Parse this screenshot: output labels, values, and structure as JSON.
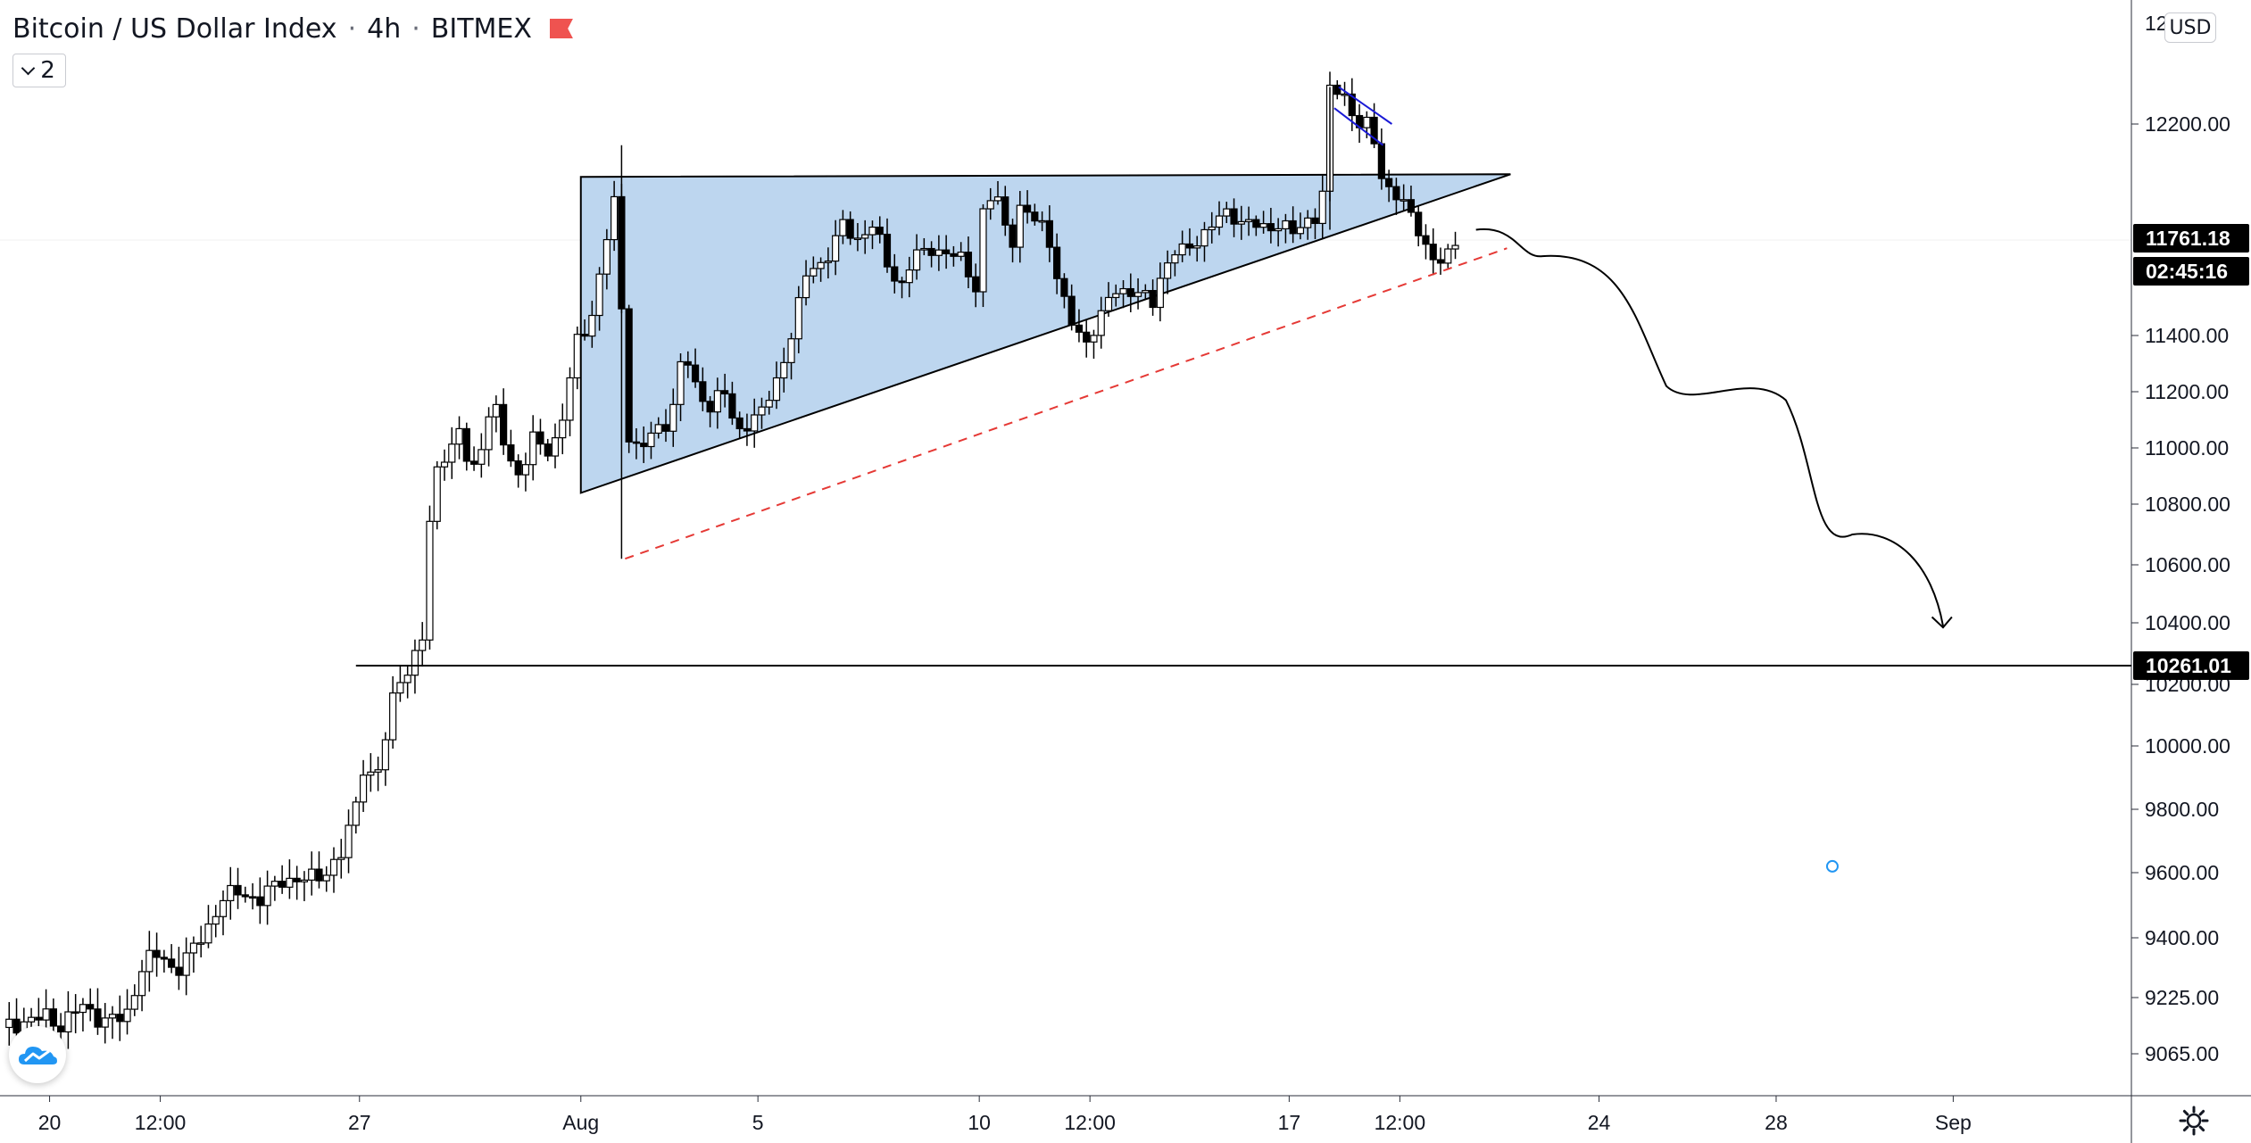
{
  "legend": {
    "symbol": "Bitcoin / US Dollar Index",
    "interval": "4h",
    "exchange": "BITMEX",
    "separator": "·",
    "flag_color": "#ef5350"
  },
  "indicator_toggle": {
    "count": "2"
  },
  "currency": "USD",
  "colors": {
    "pattern_fill": "#bdd6ef",
    "support_dashed": "#e53935",
    "flag_lines": "#1a1ad6",
    "candle_up": "#ffffff",
    "candle_down": "#000000",
    "price_label_bg": "#000000",
    "marker": "#2196f3"
  },
  "chart_data": {
    "type": "candlestick",
    "title": "Bitcoin / US Dollar Index · 4h · BITMEX",
    "ylim": [
      8970,
      12340
    ],
    "xlim_days": [
      "Jul 18 22:00",
      "Sep 3 12:00"
    ],
    "y_ticks": [
      {
        "label": "12200.00",
        "value": 12200
      },
      {
        "label": "11400.00",
        "value": 11400
      },
      {
        "label": "11200.00",
        "value": 11200
      },
      {
        "label": "11000.00",
        "value": 11000
      },
      {
        "label": "10800.00",
        "value": 10800
      },
      {
        "label": "10600.00",
        "value": 10600
      },
      {
        "label": "10400.00",
        "value": 10400
      },
      {
        "label": "10200.00",
        "value": 10200
      },
      {
        "label": "10000.00",
        "value": 10000
      },
      {
        "label": "9800.00",
        "value": 9800
      },
      {
        "label": "9600.00",
        "value": 9600
      },
      {
        "label": "9400.00",
        "value": 9400
      },
      {
        "label": "9225.00",
        "value": 9225
      },
      {
        "label": "9065.00",
        "value": 9065
      }
    ],
    "top_tick_partial": "12",
    "x_ticks": [
      {
        "label": "20",
        "day": 1.08
      },
      {
        "label": "12:00",
        "day": 3.58
      },
      {
        "label": "27",
        "day": 8.08
      },
      {
        "label": "Aug",
        "day": 13.08
      },
      {
        "label": "5",
        "day": 17.08
      },
      {
        "label": "10",
        "day": 22.08
      },
      {
        "label": "12:00",
        "day": 24.58
      },
      {
        "label": "17",
        "day": 29.08
      },
      {
        "label": "12:00",
        "day": 31.58
      },
      {
        "label": "24",
        "day": 36.08
      },
      {
        "label": "28",
        "day": 40.08
      },
      {
        "label": "Sep",
        "day": 44.08
      }
    ],
    "price_labels": {
      "last_price": "11761.18",
      "countdown": "02:45:16",
      "horizontal_level": "10261.01"
    },
    "close_path": [
      [
        0.0,
        9140
      ],
      [
        0.6,
        9160
      ],
      [
        1.0,
        9170
      ],
      [
        1.3,
        9145
      ],
      [
        1.8,
        9200
      ],
      [
        2.3,
        9160
      ],
      [
        2.8,
        9165
      ],
      [
        3.2,
        9330
      ],
      [
        3.6,
        9350
      ],
      [
        3.9,
        9300
      ],
      [
        4.3,
        9360
      ],
      [
        4.6,
        9420
      ],
      [
        5.0,
        9520
      ],
      [
        5.4,
        9545
      ],
      [
        5.8,
        9510
      ],
      [
        6.3,
        9580
      ],
      [
        6.8,
        9575
      ],
      [
        7.3,
        9600
      ],
      [
        7.7,
        9660
      ],
      [
        8.0,
        9820
      ],
      [
        8.2,
        9960
      ],
      [
        8.4,
        9880
      ],
      [
        8.6,
        9960
      ],
      [
        8.8,
        10140
      ],
      [
        9.0,
        10230
      ],
      [
        9.2,
        10240
      ],
      [
        9.5,
        10350
      ],
      [
        9.7,
        10810
      ],
      [
        9.9,
        11000
      ],
      [
        10.1,
        10950
      ],
      [
        10.3,
        11080
      ],
      [
        10.6,
        10900
      ],
      [
        10.9,
        11050
      ],
      [
        11.1,
        11170
      ],
      [
        11.4,
        10980
      ],
      [
        11.7,
        10900
      ],
      [
        12.0,
        11030
      ],
      [
        12.4,
        10980
      ],
      [
        12.7,
        11130
      ],
      [
        13.0,
        11380
      ],
      [
        13.3,
        11450
      ],
      [
        13.6,
        11720
      ],
      [
        13.9,
        11950
      ],
      [
        14.1,
        11060
      ],
      [
        14.4,
        10990
      ],
      [
        14.7,
        11050
      ],
      [
        15.1,
        11100
      ],
      [
        15.4,
        11350
      ],
      [
        15.7,
        11200
      ],
      [
        16.0,
        11150
      ],
      [
        16.3,
        11210
      ],
      [
        16.6,
        11050
      ],
      [
        16.9,
        11100
      ],
      [
        17.2,
        11130
      ],
      [
        17.5,
        11240
      ],
      [
        17.8,
        11380
      ],
      [
        18.2,
        11650
      ],
      [
        18.6,
        11680
      ],
      [
        19.0,
        11820
      ],
      [
        19.3,
        11760
      ],
      [
        19.7,
        11820
      ],
      [
        20.0,
        11670
      ],
      [
        20.3,
        11580
      ],
      [
        20.6,
        11700
      ],
      [
        21.0,
        11730
      ],
      [
        21.3,
        11710
      ],
      [
        21.7,
        11690
      ],
      [
        22.0,
        11580
      ],
      [
        22.2,
        11920
      ],
      [
        22.5,
        11910
      ],
      [
        22.8,
        11740
      ],
      [
        23.0,
        11880
      ],
      [
        23.3,
        11840
      ],
      [
        23.6,
        11810
      ],
      [
        23.9,
        11570
      ],
      [
        24.2,
        11430
      ],
      [
        24.5,
        11380
      ],
      [
        24.8,
        11460
      ],
      [
        25.1,
        11570
      ],
      [
        25.4,
        11570
      ],
      [
        25.7,
        11560
      ],
      [
        26.0,
        11520
      ],
      [
        26.2,
        11640
      ],
      [
        26.5,
        11720
      ],
      [
        26.8,
        11720
      ],
      [
        27.2,
        11800
      ],
      [
        27.6,
        11860
      ],
      [
        27.9,
        11840
      ],
      [
        28.2,
        11830
      ],
      [
        28.6,
        11790
      ],
      [
        28.9,
        11840
      ],
      [
        29.2,
        11780
      ],
      [
        29.5,
        11830
      ],
      [
        29.8,
        11870
      ],
      [
        30.0,
        12330
      ],
      [
        30.3,
        12310
      ],
      [
        30.6,
        12210
      ],
      [
        30.9,
        12200
      ],
      [
        31.2,
        11970
      ],
      [
        31.6,
        11930
      ],
      [
        31.9,
        11820
      ],
      [
        32.3,
        11700
      ],
      [
        32.6,
        11680
      ],
      [
        32.9,
        11761.18
      ]
    ],
    "annotations": {
      "ascending_triangle": {
        "apex_start": [
          "Aug 1 00:00",
          12000
        ],
        "upper_end": [
          "Aug 22 00:00",
          12010
        ],
        "base": [
          "Aug 1 00:00",
          10840
        ]
      },
      "support_dashed_line": {
        "from": [
          "Aug 3 00:00",
          10620
        ],
        "to": [
          "Aug 22 00:00",
          11730
        ]
      },
      "horizontal_level": 10261.01,
      "bull_flag_lines": [
        {
          "from": 12340,
          "to": 12200
        },
        {
          "from": 12280,
          "to": 12130
        }
      ],
      "projected_path_target": 10380
    }
  }
}
